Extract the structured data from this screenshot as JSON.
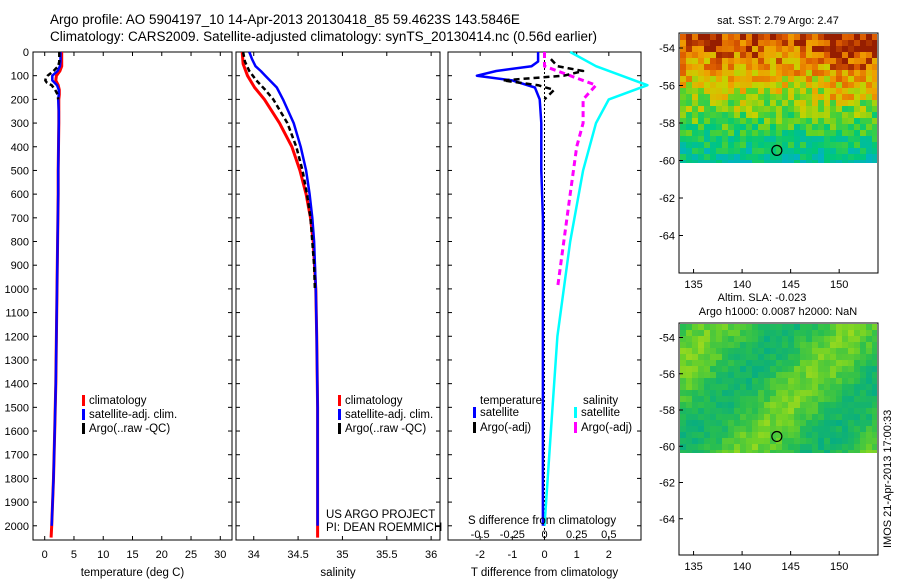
{
  "header": {
    "line1": "Argo profile: AO 5904197_10 14-Apr-2013 20130418_85 59.4623S 143.5846E",
    "line2": "Climatology: CARS2009. Satellite-adjusted climatology: synTS_20130414.nc (0.56d earlier)"
  },
  "colors": {
    "climatology": "#ff0000",
    "satellite": "#0000ff",
    "argo": "#000000",
    "salinity_satellite": "#00ffff",
    "salinity_argo": "#ff00ff"
  },
  "depth_axis": {
    "ticks": [
      "0",
      "100",
      "200",
      "300",
      "400",
      "500",
      "600",
      "700",
      "800",
      "900",
      "1000",
      "1100",
      "1200",
      "1300",
      "1400",
      "1500",
      "1600",
      "1700",
      "1800",
      "1900",
      "2000"
    ],
    "range": [
      0,
      2060
    ]
  },
  "panels": {
    "temperature": {
      "xlabel": "temperature (deg C)",
      "xticks": [
        "0",
        "5",
        "10",
        "15",
        "20",
        "25",
        "30"
      ],
      "xrange": [
        -2,
        32
      ],
      "legend": [
        "climatology",
        "satellite-adj. clim.",
        "Argo(..raw -QC)"
      ]
    },
    "salinity": {
      "xlabel": "salinity",
      "xticks": [
        "34",
        "34.5",
        "35",
        "35.5",
        "36"
      ],
      "xrange": [
        33.8,
        36.1
      ],
      "legend": [
        "climatology",
        "satellite-adj. clim.",
        "Argo(..raw -QC)"
      ],
      "note1": "US ARGO PROJECT",
      "note2": "PI: DEAN ROEMMICH"
    },
    "difference": {
      "xlabel": "T difference from climatology",
      "s_title": "S difference from climatology",
      "xticks": [
        "-2",
        "-1",
        "0",
        "1",
        "2"
      ],
      "sticks": [
        "-0.5",
        "-0.25",
        "0",
        "0.25",
        "0.5"
      ],
      "xrange": [
        -3,
        3
      ],
      "legend_temp_title": "temperature",
      "legend_sal_title": "salinity",
      "legend_temp": [
        "satellite",
        "Argo(-adj)"
      ],
      "legend_sal": [
        "satellite",
        "Argo(-adj)"
      ]
    }
  },
  "maps": {
    "sst_title": "sat. SST: 2.79 Argo: 2.47",
    "sla_title1": "Altim. SLA: -0.023",
    "sla_title2": "Argo h1000: 0.0087 h2000: NaN",
    "yticks": [
      "-54",
      "-56",
      "-58",
      "-60",
      "-62",
      "-64"
    ],
    "xticks": [
      "135",
      "140",
      "145",
      "150"
    ],
    "lat_range": [
      -53.2,
      -66
    ],
    "lon_range": [
      133.5,
      154
    ],
    "argo_position": {
      "lon": 143.58,
      "lat": -59.46
    },
    "side_label": "IMOS 21-Apr-2013 17:00:33"
  },
  "chart_data": [
    {
      "type": "line",
      "title": "",
      "xlabel": "temperature (deg C)",
      "ylabel": "",
      "xlim": [
        -2,
        32
      ],
      "ylim": [
        2060,
        0
      ],
      "series": [
        {
          "name": "climatology",
          "depth": [
            0,
            20,
            40,
            60,
            80,
            100,
            120,
            140,
            160,
            180,
            200,
            250,
            300,
            400,
            500,
            600,
            700,
            800,
            1000,
            1200,
            1400,
            1600,
            1800,
            2000,
            2050
          ],
          "values": [
            2.9,
            2.9,
            2.9,
            2.9,
            2.6,
            2.0,
            1.9,
            2.3,
            2.5,
            2.5,
            2.4,
            2.4,
            2.4,
            2.35,
            2.3,
            2.3,
            2.25,
            2.2,
            2.1,
            2.0,
            1.9,
            1.7,
            1.5,
            1.2,
            1.1
          ]
        },
        {
          "name": "satellite-adj. clim.",
          "depth": [
            0,
            20,
            40,
            60,
            80,
            100,
            120,
            140,
            160,
            180,
            200,
            250,
            300,
            400,
            500,
            600,
            700,
            800,
            1000,
            1200,
            1400,
            1600,
            1800,
            2000
          ],
          "values": [
            2.7,
            2.7,
            2.7,
            2.6,
            2.2,
            1.3,
            1.3,
            2.1,
            2.4,
            2.4,
            2.3,
            2.4,
            2.4,
            2.35,
            2.3,
            2.3,
            2.25,
            2.2,
            2.1,
            2.0,
            1.9,
            1.7,
            1.5,
            1.2
          ]
        },
        {
          "name": "Argo(..raw -QC)",
          "depth": [
            0,
            20,
            40,
            60,
            80,
            100,
            110,
            120,
            130,
            140,
            160,
            180,
            200
          ],
          "values": [
            2.5,
            2.5,
            2.5,
            2.3,
            1.5,
            0.5,
            0.2,
            0.1,
            0.4,
            1.2,
            1.8,
            2.2,
            2.3
          ]
        }
      ]
    },
    {
      "type": "line",
      "title": "",
      "xlabel": "salinity",
      "ylabel": "",
      "xlim": [
        33.8,
        36.1
      ],
      "ylim": [
        2060,
        0
      ],
      "series": [
        {
          "name": "climatology",
          "depth": [
            0,
            50,
            100,
            150,
            200,
            300,
            400,
            500,
            600,
            700,
            800,
            1000,
            1200,
            1500,
            1800,
            2000,
            2050
          ],
          "values": [
            33.87,
            33.88,
            33.93,
            34.01,
            34.12,
            34.29,
            34.43,
            34.52,
            34.59,
            34.64,
            34.67,
            34.7,
            34.71,
            34.72,
            34.72,
            34.72,
            34.72
          ]
        },
        {
          "name": "satellite-adj. clim.",
          "depth": [
            0,
            30,
            60,
            80,
            100,
            150,
            200,
            300,
            400,
            500,
            600,
            700,
            800,
            1000,
            1200,
            1500,
            1800,
            2000
          ],
          "values": [
            33.95,
            33.98,
            34.02,
            34.08,
            34.13,
            34.26,
            34.33,
            34.45,
            34.53,
            34.59,
            34.63,
            34.66,
            34.68,
            34.7,
            34.71,
            34.72,
            34.72,
            34.72
          ]
        },
        {
          "name": "Argo(..raw -QC)",
          "depth": [
            0,
            40,
            80,
            120,
            160,
            200,
            250,
            300,
            400,
            500,
            600,
            700,
            800,
            900,
            1000
          ],
          "values": [
            33.88,
            33.9,
            33.95,
            34.03,
            34.13,
            34.22,
            34.3,
            34.38,
            34.48,
            34.55,
            34.6,
            34.64,
            34.66,
            34.68,
            34.69
          ]
        }
      ]
    },
    {
      "type": "line",
      "title": "",
      "xlabel": "T difference from climatology",
      "ylabel": "",
      "xlim": [
        -3,
        3
      ],
      "ylim": [
        2060,
        0
      ],
      "series": [
        {
          "name": "temperature satellite",
          "depth": [
            0,
            40,
            60,
            80,
            100,
            120,
            150,
            200,
            300,
            500,
            700,
            1000,
            1500,
            2000
          ],
          "values": [
            -0.2,
            -0.2,
            -0.4,
            -1.5,
            -2.1,
            -1.0,
            -0.3,
            -0.15,
            -0.1,
            -0.1,
            -0.05,
            -0.05,
            -0.05,
            -0.05
          ]
        },
        {
          "name": "temperature Argo(-adj)",
          "depth": [
            30,
            60,
            80,
            100,
            120,
            140,
            160,
            200
          ],
          "values": [
            0.2,
            0.4,
            1.2,
            0.6,
            -1.3,
            -0.2,
            0.3,
            0.0
          ]
        },
        {
          "name": "salinity satellite",
          "depth": [
            0,
            60,
            100,
            140,
            200,
            300,
            500,
            800,
            1200,
            1600,
            2000
          ],
          "values": [
            0.2,
            0.4,
            0.6,
            0.8,
            0.5,
            0.4,
            0.3,
            0.2,
            0.1,
            0.05,
            0.0
          ]
        },
        {
          "name": "salinity Argo(-adj)",
          "depth": [
            0,
            60,
            100,
            140,
            200,
            300,
            400,
            600,
            800,
            1000
          ],
          "values": [
            0.0,
            0.0,
            0.2,
            0.4,
            0.3,
            0.3,
            0.25,
            0.2,
            0.15,
            0.1
          ]
        }
      ]
    },
    {
      "type": "heatmap",
      "title": "sat. SST: 2.79 Argo: 2.47",
      "xlabel": "",
      "ylabel": "",
      "xlim": [
        133.5,
        154
      ],
      "ylim": [
        -66,
        -53.2
      ]
    },
    {
      "type": "heatmap",
      "title": "Altim. SLA: -0.023",
      "xlabel": "",
      "ylabel": "",
      "xlim": [
        133.5,
        154
      ],
      "ylim": [
        -66,
        -53.2
      ]
    }
  ]
}
